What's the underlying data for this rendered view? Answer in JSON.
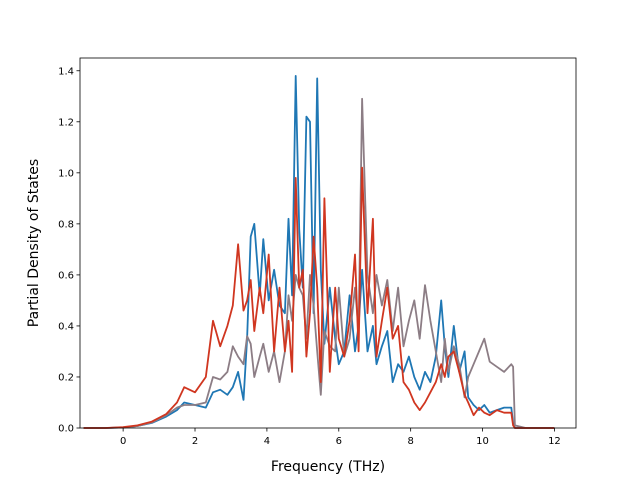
{
  "chart_data": {
    "type": "line",
    "title": "",
    "xlabel": "Frequency (THz)",
    "ylabel": "Partial Density of States",
    "xlim": [
      -1.2,
      12.6
    ],
    "ylim": [
      0,
      1.45
    ],
    "xticks": [
      0,
      2,
      4,
      6,
      8,
      10,
      12
    ],
    "yticks": [
      0.0,
      0.2,
      0.4,
      0.6,
      0.8,
      1.0,
      1.2,
      1.4
    ],
    "xtick_labels": [
      "0",
      "2",
      "4",
      "6",
      "8",
      "10",
      "12"
    ],
    "ytick_labels": [
      "0.0",
      "0.2",
      "0.4",
      "0.6",
      "0.8",
      "1.0",
      "1.2",
      "1.4"
    ],
    "grid": false,
    "legend": "none",
    "series": [
      {
        "color": "#1f77b4",
        "x": [
          -1.1,
          -0.5,
          0,
          0.4,
          0.8,
          1.2,
          1.5,
          1.7,
          2.0,
          2.3,
          2.5,
          2.7,
          2.9,
          3.05,
          3.2,
          3.35,
          3.45,
          3.55,
          3.65,
          3.8,
          3.9,
          4.05,
          4.2,
          4.35,
          4.5,
          4.6,
          4.7,
          4.8,
          4.9,
          5.0,
          5.1,
          5.2,
          5.3,
          5.4,
          5.5,
          5.6,
          5.75,
          5.9,
          6.0,
          6.15,
          6.3,
          6.45,
          6.55,
          6.65,
          6.8,
          6.95,
          7.05,
          7.2,
          7.35,
          7.5,
          7.65,
          7.8,
          7.95,
          8.1,
          8.25,
          8.4,
          8.55,
          8.7,
          8.85,
          8.95,
          9.05,
          9.2,
          9.35,
          9.5,
          9.6,
          9.75,
          9.9,
          10.05,
          10.2,
          10.4,
          10.6,
          10.8,
          10.85,
          10.9,
          11.2,
          12.0
        ],
        "values": [
          0,
          0,
          0.002,
          0.008,
          0.02,
          0.045,
          0.07,
          0.1,
          0.09,
          0.08,
          0.14,
          0.15,
          0.13,
          0.16,
          0.22,
          0.11,
          0.35,
          0.75,
          0.8,
          0.52,
          0.74,
          0.5,
          0.62,
          0.48,
          0.45,
          0.82,
          0.52,
          1.38,
          0.78,
          0.55,
          1.22,
          1.2,
          0.45,
          1.37,
          0.62,
          0.33,
          0.55,
          0.35,
          0.25,
          0.3,
          0.52,
          0.3,
          0.4,
          0.62,
          0.3,
          0.4,
          0.25,
          0.32,
          0.38,
          0.18,
          0.25,
          0.22,
          0.28,
          0.2,
          0.15,
          0.22,
          0.18,
          0.28,
          0.5,
          0.32,
          0.2,
          0.4,
          0.22,
          0.3,
          0.12,
          0.09,
          0.07,
          0.09,
          0.06,
          0.07,
          0.08,
          0.08,
          0.02,
          0,
          0,
          0
        ]
      },
      {
        "color": "#8c7d85",
        "x": [
          -1.1,
          -0.5,
          0,
          0.4,
          0.8,
          1.2,
          1.5,
          1.7,
          2.0,
          2.3,
          2.5,
          2.7,
          2.9,
          3.05,
          3.2,
          3.35,
          3.45,
          3.55,
          3.65,
          3.8,
          3.9,
          4.05,
          4.2,
          4.35,
          4.5,
          4.6,
          4.7,
          4.8,
          4.9,
          5.0,
          5.1,
          5.2,
          5.3,
          5.4,
          5.5,
          5.6,
          5.75,
          5.9,
          6.0,
          6.15,
          6.3,
          6.45,
          6.55,
          6.65,
          6.8,
          6.95,
          7.05,
          7.2,
          7.35,
          7.5,
          7.65,
          7.8,
          7.95,
          8.1,
          8.25,
          8.4,
          8.55,
          8.7,
          8.85,
          8.95,
          9.05,
          9.2,
          9.35,
          9.5,
          9.6,
          9.75,
          9.9,
          10.05,
          10.2,
          10.4,
          10.6,
          10.8,
          10.85,
          10.9,
          11.2,
          12.0
        ],
        "values": [
          0,
          0,
          0.002,
          0.008,
          0.022,
          0.05,
          0.08,
          0.09,
          0.09,
          0.1,
          0.2,
          0.19,
          0.22,
          0.32,
          0.28,
          0.25,
          0.36,
          0.33,
          0.2,
          0.28,
          0.33,
          0.22,
          0.3,
          0.18,
          0.3,
          0.52,
          0.42,
          0.6,
          0.55,
          0.52,
          0.35,
          0.6,
          0.48,
          0.3,
          0.13,
          0.38,
          0.32,
          0.3,
          0.55,
          0.28,
          0.35,
          0.55,
          0.38,
          1.29,
          0.6,
          0.45,
          0.6,
          0.48,
          0.58,
          0.38,
          0.55,
          0.32,
          0.42,
          0.5,
          0.35,
          0.56,
          0.42,
          0.3,
          0.18,
          0.35,
          0.22,
          0.32,
          0.25,
          0.12,
          0.2,
          0.25,
          0.3,
          0.35,
          0.26,
          0.24,
          0.22,
          0.25,
          0.24,
          0.01,
          0,
          0
        ]
      },
      {
        "color": "#d03620",
        "x": [
          -1.1,
          -0.5,
          0,
          0.4,
          0.8,
          1.2,
          1.5,
          1.7,
          2.0,
          2.3,
          2.5,
          2.7,
          2.9,
          3.05,
          3.2,
          3.35,
          3.45,
          3.55,
          3.65,
          3.8,
          3.9,
          4.05,
          4.2,
          4.35,
          4.5,
          4.6,
          4.7,
          4.8,
          4.9,
          5.0,
          5.1,
          5.2,
          5.3,
          5.4,
          5.5,
          5.6,
          5.75,
          5.9,
          6.0,
          6.15,
          6.3,
          6.45,
          6.55,
          6.65,
          6.8,
          6.95,
          7.05,
          7.2,
          7.35,
          7.5,
          7.65,
          7.8,
          7.95,
          8.1,
          8.25,
          8.4,
          8.55,
          8.7,
          8.85,
          8.95,
          9.05,
          9.2,
          9.35,
          9.5,
          9.6,
          9.75,
          9.9,
          10.05,
          10.2,
          10.4,
          10.6,
          10.8,
          10.85,
          10.9,
          11.2,
          12.0
        ],
        "values": [
          0,
          0,
          0.003,
          0.01,
          0.025,
          0.055,
          0.1,
          0.16,
          0.14,
          0.2,
          0.42,
          0.32,
          0.4,
          0.48,
          0.72,
          0.46,
          0.5,
          0.58,
          0.38,
          0.55,
          0.45,
          0.68,
          0.3,
          0.55,
          0.3,
          0.42,
          0.22,
          0.98,
          0.55,
          0.62,
          0.28,
          0.45,
          0.75,
          0.55,
          0.18,
          0.9,
          0.22,
          0.55,
          0.35,
          0.28,
          0.42,
          0.68,
          0.3,
          1.02,
          0.45,
          0.82,
          0.28,
          0.42,
          0.55,
          0.35,
          0.4,
          0.18,
          0.15,
          0.1,
          0.07,
          0.1,
          0.14,
          0.18,
          0.25,
          0.2,
          0.28,
          0.3,
          0.22,
          0.13,
          0.1,
          0.05,
          0.08,
          0.06,
          0.05,
          0.07,
          0.06,
          0.06,
          0.01,
          0,
          0,
          0
        ]
      }
    ]
  }
}
